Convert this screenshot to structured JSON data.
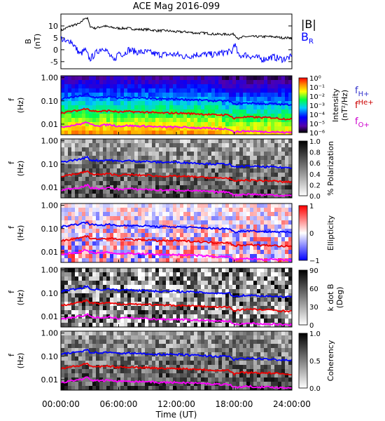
{
  "chart_data": {
    "title": "ACE Mag 2016-099",
    "type": "line",
    "x_axis": {
      "label": "Time (UT)",
      "ticks": [
        "00:00:00",
        "06:00:00",
        "12:00:00",
        "18:00:00",
        "24:00:00"
      ],
      "range_hours": [
        0,
        24
      ]
    },
    "b_panel": {
      "type": "line",
      "ylabel": "B",
      "yunit": "(nT)",
      "ylim": [
        -8,
        15
      ],
      "yticks": [
        "10",
        "5",
        "0",
        "-5"
      ],
      "series": [
        {
          "name": "|B|",
          "color": "#000000",
          "x": [
            0,
            0.5,
            1,
            1.5,
            2,
            2.5,
            2.8,
            3,
            3.5,
            4,
            4.5,
            5,
            6,
            7,
            8,
            9,
            10,
            11,
            12,
            13,
            14,
            15,
            16,
            17,
            18,
            18.5,
            19,
            20,
            21,
            22,
            23,
            24
          ],
          "y": [
            8,
            9,
            10,
            10.5,
            11,
            13.5,
            13,
            10,
            9,
            9.5,
            10,
            9.5,
            9,
            9,
            8.5,
            8.5,
            8,
            8,
            7.5,
            7.5,
            7,
            7,
            6.5,
            6.5,
            6.5,
            4.5,
            5.5,
            5.5,
            5.5,
            5.5,
            5,
            5
          ]
        },
        {
          "name": "B",
          "color": "#0000ff",
          "x": [
            0,
            0.5,
            1,
            1.5,
            2,
            2.5,
            3,
            3.5,
            4,
            4.5,
            5,
            5.5,
            6,
            6.5,
            7,
            8,
            9,
            10,
            11,
            12,
            13,
            14,
            15,
            16,
            17,
            17.8,
            18,
            18.5,
            19,
            20,
            21,
            22,
            23,
            24
          ],
          "y": [
            5,
            3,
            4,
            1,
            -2,
            0,
            -4,
            -2,
            0,
            1,
            -2,
            -5,
            -1,
            -2,
            0,
            -1,
            -1,
            -2,
            -2,
            -2,
            -3,
            -2,
            -2,
            -2,
            -1,
            -1,
            3,
            -3,
            -2,
            -3,
            -4,
            -3,
            -4,
            -3
          ]
        }
      ]
    },
    "legend_b": [
      {
        "text": "|B|",
        "sub": "",
        "color": "#000000"
      },
      {
        "text": "B",
        "sub": "R",
        "color": "#0000ff"
      }
    ],
    "spectral_panels": [
      {
        "name": "intensity",
        "type": "heatmap",
        "ylabel": "f",
        "yunit": "(Hz)",
        "yticks": [
          "1.00",
          "0.10",
          "0.01"
        ],
        "colorbar": {
          "label_line1": "Intensity",
          "label_line2": "(nT²/Hz)",
          "ticks": [
            "10⁰",
            "10⁻¹",
            "10⁻²",
            "10⁻³",
            "10⁻⁴",
            "10⁻⁵",
            "10⁻⁶"
          ]
        }
      },
      {
        "name": "polarization",
        "type": "heatmap",
        "ylabel": "f",
        "yunit": "(Hz)",
        "yticks": [
          "1.00",
          "0.10",
          "0.01"
        ],
        "colorbar": {
          "label_line1": "% Polarization",
          "label_line2": "",
          "ticks": [
            "1.0",
            "0.8",
            "0.6",
            "0.4",
            "0.2",
            "0.0"
          ]
        }
      },
      {
        "name": "ellipticity",
        "type": "heatmap",
        "ylabel": "f",
        "yunit": "(Hz)",
        "yticks": [
          "1.00",
          "0.10",
          "0.01"
        ],
        "colorbar": {
          "label_line1": "Ellipticity",
          "label_line2": "",
          "ticks": [
            "1",
            "0",
            "−1"
          ]
        }
      },
      {
        "name": "k-dot-b",
        "type": "heatmap",
        "ylabel": "f",
        "yunit": "(Hz)",
        "yticks": [
          "1.00",
          "0.10",
          "0.01"
        ],
        "colorbar": {
          "label_line1": "k dot B",
          "label_line2": "(Deg)",
          "ticks": [
            "90",
            "60",
            "30",
            "0"
          ]
        }
      },
      {
        "name": "coherency",
        "type": "heatmap",
        "ylabel": "f",
        "yunit": "(Hz)",
        "yticks": [
          "1.00",
          "0.10",
          "0.01"
        ],
        "colorbar": {
          "label_line1": "Coherency",
          "label_line2": "",
          "ticks": [
            "1.0",
            "0.5",
            "0.0"
          ]
        }
      }
    ],
    "gyrofrequency_legend": [
      {
        "text": "f",
        "sub": "H+",
        "color": "#3333cc"
      },
      {
        "text": "f",
        "sub": "He+",
        "color": "#cc0000"
      },
      {
        "text": "f",
        "sub": "O+",
        "color": "#cc00cc"
      }
    ],
    "gyrofrequency_series": [
      {
        "name": "fH+",
        "color": "#0000ff",
        "x": [
          0,
          1,
          2,
          2.8,
          3,
          4,
          5,
          6,
          7,
          8,
          9,
          10,
          12,
          14,
          16,
          17.5,
          18,
          18.3,
          19,
          20,
          21,
          22,
          23,
          24
        ],
        "y": [
          0.12,
          0.14,
          0.16,
          0.2,
          0.15,
          0.14,
          0.15,
          0.13,
          0.14,
          0.13,
          0.13,
          0.12,
          0.12,
          0.11,
          0.1,
          0.1,
          0.07,
          0.075,
          0.08,
          0.08,
          0.075,
          0.075,
          0.07,
          0.07
        ]
      },
      {
        "name": "fHe+",
        "color": "#ee0000",
        "x": [
          0,
          1,
          2,
          2.8,
          3,
          4,
          5,
          6,
          7,
          8,
          9,
          10,
          12,
          14,
          16,
          17.5,
          18,
          18.3,
          19,
          20,
          21,
          22,
          23,
          24
        ],
        "y": [
          0.03,
          0.035,
          0.04,
          0.05,
          0.038,
          0.035,
          0.038,
          0.033,
          0.035,
          0.033,
          0.033,
          0.03,
          0.03,
          0.028,
          0.025,
          0.025,
          0.017,
          0.019,
          0.02,
          0.02,
          0.019,
          0.019,
          0.017,
          0.017
        ]
      },
      {
        "name": "fO+",
        "color": "#ff00ff",
        "x": [
          0,
          1,
          2,
          2.8,
          3,
          4,
          5,
          6,
          7,
          8,
          9,
          10,
          12,
          14,
          16,
          17.5,
          18,
          18.3,
          19,
          20,
          21,
          22,
          23,
          24
        ],
        "y": [
          0.0075,
          0.0087,
          0.01,
          0.0125,
          0.0095,
          0.0087,
          0.0095,
          0.0082,
          0.0087,
          0.0082,
          0.0082,
          0.0075,
          0.0075,
          0.007,
          0.0063,
          0.0063,
          0.0044,
          0.0047,
          0.005,
          0.005,
          0.0047,
          0.0047,
          0.0044,
          0.0044
        ]
      }
    ]
  }
}
